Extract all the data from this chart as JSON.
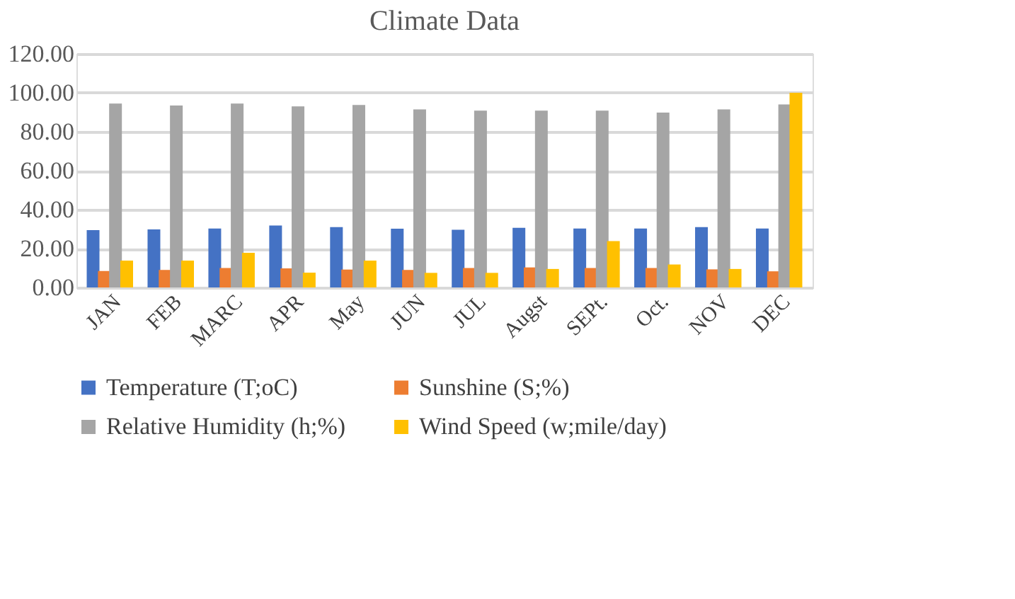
{
  "chart_data": {
    "type": "bar",
    "title": "Climate Data",
    "categories": [
      "JAN",
      "FEB",
      "MARC",
      "APR",
      "May",
      "JUN",
      "JUL",
      "Augst",
      "SEPt.",
      "Oct.",
      "NOV",
      "DEC"
    ],
    "series": [
      {
        "name": "Temperature (T;oC)",
        "color": "#4472c4",
        "values": [
          29.5,
          29.8,
          30.3,
          31.8,
          31.0,
          30.2,
          29.6,
          30.6,
          30.3,
          30.3,
          31.0,
          30.3
        ]
      },
      {
        "name": "Sunshine (S;%)",
        "color": "#ed7d31",
        "values": [
          8.5,
          9,
          10,
          9.8,
          9.2,
          9,
          10,
          10.3,
          10,
          10,
          9.3,
          8.3
        ]
      },
      {
        "name": "Relative Humidity (h;%)",
        "color": "#a5a5a5",
        "values": [
          94.5,
          93.5,
          94.5,
          93,
          93.7,
          91.5,
          90.8,
          90.8,
          90.8,
          89.8,
          91.5,
          94
        ]
      },
      {
        "name": "Wind Speed (w;mile/day)",
        "color": "#ffc000",
        "values": [
          13.8,
          13.8,
          17.8,
          7.6,
          13.8,
          7.5,
          7.5,
          9.5,
          23.8,
          11.8,
          9.5,
          100
        ]
      }
    ],
    "ylim": [
      0,
      120
    ],
    "yticks": [
      {
        "value": 0,
        "label": "0.00"
      },
      {
        "value": 20,
        "label": "20.00"
      },
      {
        "value": 40,
        "label": "40.00"
      },
      {
        "value": 60,
        "label": "60.00"
      },
      {
        "value": 80,
        "label": "80.00"
      },
      {
        "value": 100,
        "label": "100.00"
      },
      {
        "value": 120,
        "label": "120.00"
      }
    ],
    "grid": "y",
    "legend": "bottom"
  }
}
